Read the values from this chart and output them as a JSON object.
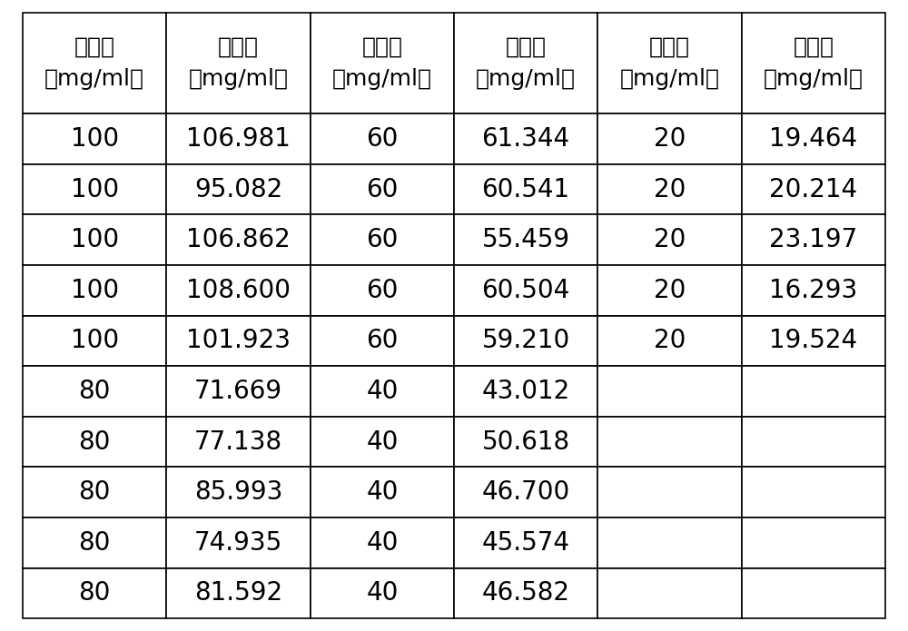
{
  "headers": [
    "真实值\n（mg/ml）",
    "预测值\n（mg/ml）",
    "真实值\n（mg/ml）",
    "预测值\n（mg/ml）",
    "真实值\n（mg/ml）",
    "预测值\n（mg/ml）"
  ],
  "rows": [
    [
      "100",
      "106.981",
      "60",
      "61.344",
      "20",
      "19.464"
    ],
    [
      "100",
      "95.082",
      "60",
      "60.541",
      "20",
      "20.214"
    ],
    [
      "100",
      "106.862",
      "60",
      "55.459",
      "20",
      "23.197"
    ],
    [
      "100",
      "108.600",
      "60",
      "60.504",
      "20",
      "16.293"
    ],
    [
      "100",
      "101.923",
      "60",
      "59.210",
      "20",
      "19.524"
    ],
    [
      "80",
      "71.669",
      "40",
      "43.012",
      "",
      ""
    ],
    [
      "80",
      "77.138",
      "40",
      "50.618",
      "",
      ""
    ],
    [
      "80",
      "85.993",
      "40",
      "46.700",
      "",
      ""
    ],
    [
      "80",
      "74.935",
      "40",
      "45.574",
      "",
      ""
    ],
    [
      "80",
      "81.592",
      "40",
      "46.582",
      "",
      ""
    ]
  ],
  "background_color": "#ffffff",
  "border_color": "#000000",
  "text_color": "#000000",
  "header_fontsize": 18,
  "cell_fontsize": 20
}
